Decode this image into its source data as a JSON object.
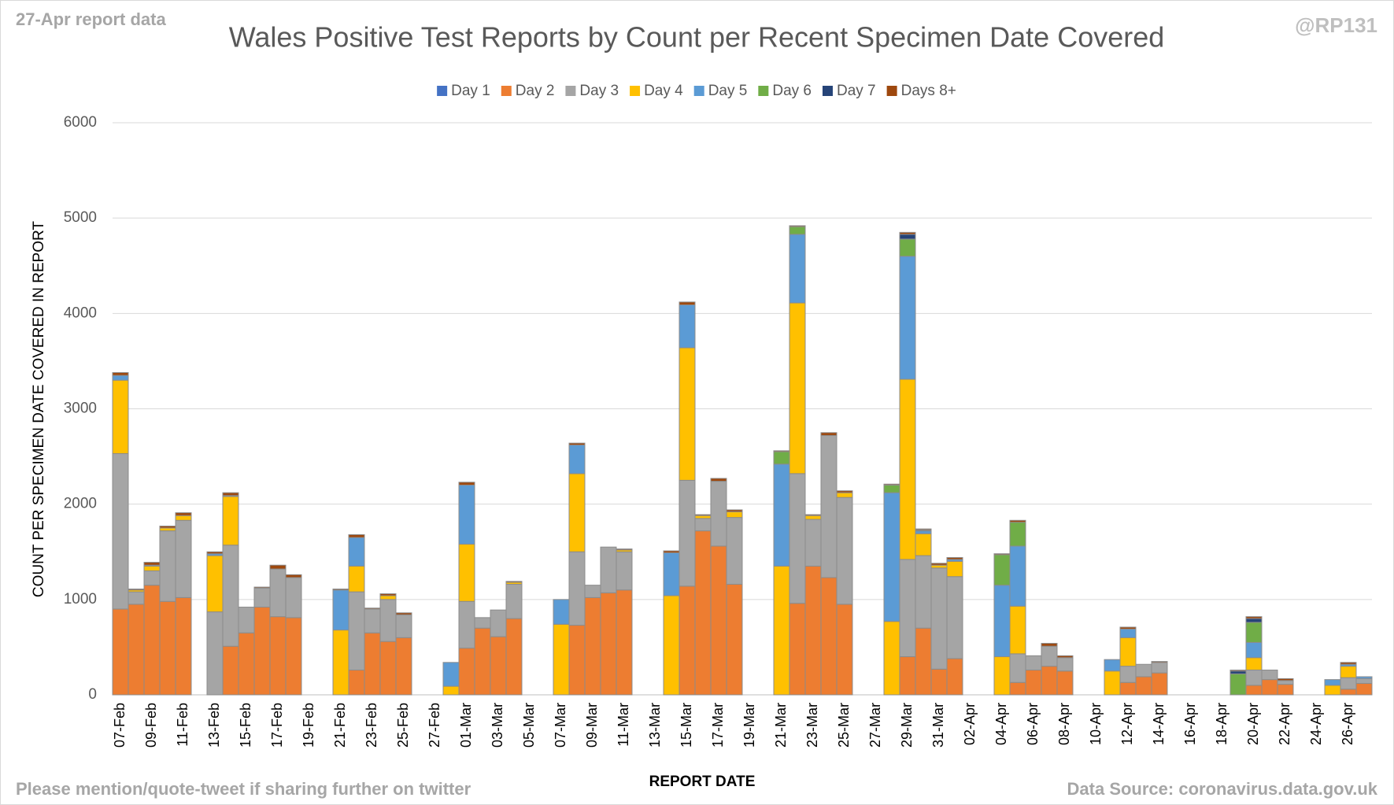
{
  "chart_data": {
    "type": "stacked_bar",
    "title": "Wales Positive Test Reports by Count per Recent Specimen Date Covered",
    "y_label": "COUNT PER SPECIMEN DATE COVERED IN REPORT",
    "x_label": "REPORT DATE",
    "annotations": [
      "27-Apr report data",
      "@RP131",
      "Please mention/quote-tweet if sharing further on twitter",
      "Data Source: coronavirus.data.gov.uk"
    ],
    "ylim": [
      0,
      6000
    ],
    "yticks": [
      0,
      1000,
      2000,
      3000,
      4000,
      5000,
      6000
    ],
    "grid": true,
    "legend": "top",
    "categories": [
      "07-Feb",
      null,
      "09-Feb",
      null,
      "11-Feb",
      null,
      "13-Feb",
      null,
      "15-Feb",
      null,
      "17-Feb",
      null,
      "19-Feb",
      null,
      "21-Feb",
      null,
      "23-Feb",
      null,
      "25-Feb",
      null,
      "27-Feb",
      null,
      "01-Mar",
      null,
      "03-Mar",
      null,
      "05-Mar",
      null,
      "07-Mar",
      null,
      "09-Mar",
      null,
      "11-Mar",
      null,
      "13-Mar",
      null,
      "15-Mar",
      null,
      "17-Mar",
      null,
      "19-Mar",
      null,
      "21-Mar",
      null,
      "23-Mar",
      null,
      "25-Mar",
      null,
      "27-Mar",
      null,
      "29-Mar",
      null,
      "31-Mar",
      null,
      "02-Apr",
      null,
      "04-Apr",
      null,
      "06-Apr",
      null,
      "08-Apr",
      null,
      "10-Apr",
      null,
      "12-Apr",
      null,
      "14-Apr",
      null,
      "16-Apr",
      null,
      "18-Apr",
      null,
      "20-Apr",
      null,
      "22-Apr",
      null,
      "24-Apr",
      null,
      "26-Apr",
      null
    ],
    "series": [
      {
        "name": "Day 1",
        "color": "#4472c4",
        "values": [
          0,
          0,
          0,
          0,
          0,
          0,
          0,
          0,
          0,
          0,
          0,
          0,
          0,
          0,
          0,
          0,
          0,
          0,
          0,
          0,
          0,
          0,
          0,
          0,
          0,
          0,
          0,
          0,
          0,
          0,
          0,
          0,
          0,
          0,
          0,
          0,
          0,
          0,
          0,
          0,
          0,
          0,
          0,
          0,
          0,
          0,
          0,
          0,
          0,
          0,
          0,
          0,
          0,
          0,
          0,
          0,
          0,
          0,
          0,
          0,
          0,
          0,
          0,
          0,
          0,
          0,
          0,
          0,
          0,
          0,
          0,
          0,
          0,
          0,
          0,
          0,
          0,
          0,
          0,
          0
        ]
      },
      {
        "name": "Day 2",
        "color": "#ed7d31",
        "values": [
          900,
          950,
          1150,
          980,
          1020,
          0,
          0,
          510,
          650,
          920,
          820,
          810,
          0,
          0,
          0,
          260,
          650,
          560,
          600,
          0,
          0,
          0,
          490,
          700,
          610,
          800,
          0,
          0,
          0,
          730,
          1020,
          1070,
          1100,
          0,
          0,
          0,
          1140,
          1720,
          1560,
          1160,
          0,
          0,
          0,
          960,
          1350,
          1230,
          950,
          0,
          0,
          0,
          400,
          700,
          270,
          380,
          0,
          0,
          0,
          130,
          260,
          300,
          250,
          0,
          0,
          0,
          130,
          190,
          230,
          0,
          0,
          0,
          0,
          0,
          100,
          160,
          110,
          0,
          0,
          0,
          60,
          120
        ]
      },
      {
        "name": "Day 3",
        "color": "#a5a5a5",
        "values": [
          1630,
          130,
          150,
          740,
          810,
          0,
          870,
          1060,
          270,
          200,
          500,
          420,
          0,
          0,
          0,
          820,
          250,
          440,
          240,
          0,
          0,
          0,
          490,
          110,
          280,
          360,
          0,
          0,
          0,
          770,
          130,
          480,
          400,
          0,
          0,
          0,
          1110,
          130,
          680,
          700,
          0,
          0,
          0,
          1360,
          490,
          1490,
          1120,
          0,
          0,
          0,
          1020,
          760,
          1060,
          860,
          0,
          0,
          0,
          300,
          150,
          210,
          140,
          0,
          0,
          0,
          170,
          130,
          110,
          0,
          0,
          0,
          0,
          0,
          160,
          100,
          40,
          0,
          0,
          0,
          120,
          50
        ]
      },
      {
        "name": "Day 4",
        "color": "#ffc000",
        "values": [
          770,
          20,
          50,
          30,
          50,
          0,
          590,
          510,
          0,
          0,
          0,
          0,
          0,
          0,
          680,
          270,
          0,
          40,
          0,
          0,
          0,
          90,
          600,
          0,
          0,
          20,
          0,
          0,
          740,
          820,
          0,
          0,
          20,
          0,
          0,
          1040,
          1390,
          30,
          0,
          60,
          0,
          0,
          1350,
          1790,
          40,
          0,
          50,
          0,
          0,
          770,
          1890,
          230,
          30,
          160,
          0,
          0,
          400,
          500,
          0,
          0,
          0,
          0,
          0,
          250,
          300,
          0,
          0,
          0,
          0,
          0,
          0,
          0,
          130,
          0,
          0,
          0,
          0,
          100,
          120,
          0
        ]
      },
      {
        "name": "Day 5",
        "color": "#5b9bd5",
        "values": [
          50,
          0,
          10,
          0,
          0,
          0,
          20,
          10,
          0,
          0,
          0,
          0,
          0,
          0,
          420,
          300,
          0,
          0,
          0,
          0,
          0,
          250,
          620,
          0,
          0,
          0,
          0,
          0,
          260,
          300,
          0,
          0,
          0,
          0,
          0,
          450,
          450,
          0,
          0,
          0,
          0,
          0,
          1070,
          720,
          0,
          0,
          0,
          0,
          0,
          1350,
          1290,
          30,
          0,
          20,
          0,
          0,
          750,
          630,
          0,
          0,
          0,
          0,
          0,
          120,
          90,
          0,
          0,
          0,
          0,
          0,
          0,
          0,
          160,
          0,
          0,
          0,
          0,
          60,
          20,
          20
        ]
      },
      {
        "name": "Day 6",
        "color": "#70ad47",
        "values": [
          0,
          0,
          0,
          0,
          0,
          0,
          0,
          0,
          0,
          0,
          0,
          0,
          0,
          0,
          0,
          0,
          0,
          0,
          0,
          0,
          0,
          0,
          0,
          0,
          0,
          0,
          0,
          0,
          0,
          0,
          0,
          0,
          0,
          0,
          0,
          0,
          0,
          0,
          0,
          0,
          0,
          0,
          130,
          80,
          0,
          0,
          0,
          0,
          0,
          80,
          180,
          0,
          0,
          0,
          0,
          0,
          320,
          250,
          0,
          0,
          0,
          0,
          0,
          0,
          0,
          0,
          0,
          0,
          0,
          0,
          0,
          220,
          210,
          0,
          0,
          0,
          0,
          0,
          0,
          0
        ]
      },
      {
        "name": "Day 7",
        "color": "#264478",
        "values": [
          0,
          0,
          0,
          0,
          0,
          0,
          0,
          0,
          0,
          0,
          0,
          0,
          0,
          0,
          0,
          0,
          0,
          0,
          0,
          0,
          0,
          0,
          0,
          0,
          0,
          0,
          0,
          0,
          0,
          0,
          0,
          0,
          0,
          0,
          0,
          0,
          0,
          0,
          0,
          0,
          0,
          0,
          0,
          0,
          0,
          0,
          0,
          0,
          0,
          0,
          50,
          10,
          0,
          0,
          0,
          0,
          0,
          0,
          0,
          0,
          0,
          0,
          0,
          0,
          0,
          0,
          0,
          0,
          0,
          0,
          0,
          30,
          40,
          0,
          0,
          0,
          0,
          0,
          0,
          0
        ]
      },
      {
        "name": "Days 8+",
        "color": "#9e480e",
        "values": [
          30,
          10,
          30,
          20,
          30,
          0,
          20,
          30,
          0,
          10,
          40,
          30,
          0,
          0,
          10,
          30,
          10,
          20,
          20,
          0,
          0,
          0,
          30,
          0,
          0,
          10,
          0,
          0,
          0,
          20,
          0,
          0,
          10,
          0,
          0,
          20,
          30,
          10,
          30,
          20,
          0,
          0,
          10,
          10,
          10,
          30,
          20,
          0,
          0,
          10,
          20,
          10,
          20,
          20,
          0,
          0,
          10,
          20,
          0,
          30,
          20,
          0,
          0,
          0,
          20,
          0,
          10,
          0,
          0,
          0,
          0,
          10,
          20,
          0,
          20,
          0,
          0,
          0,
          20,
          0
        ]
      }
    ]
  }
}
